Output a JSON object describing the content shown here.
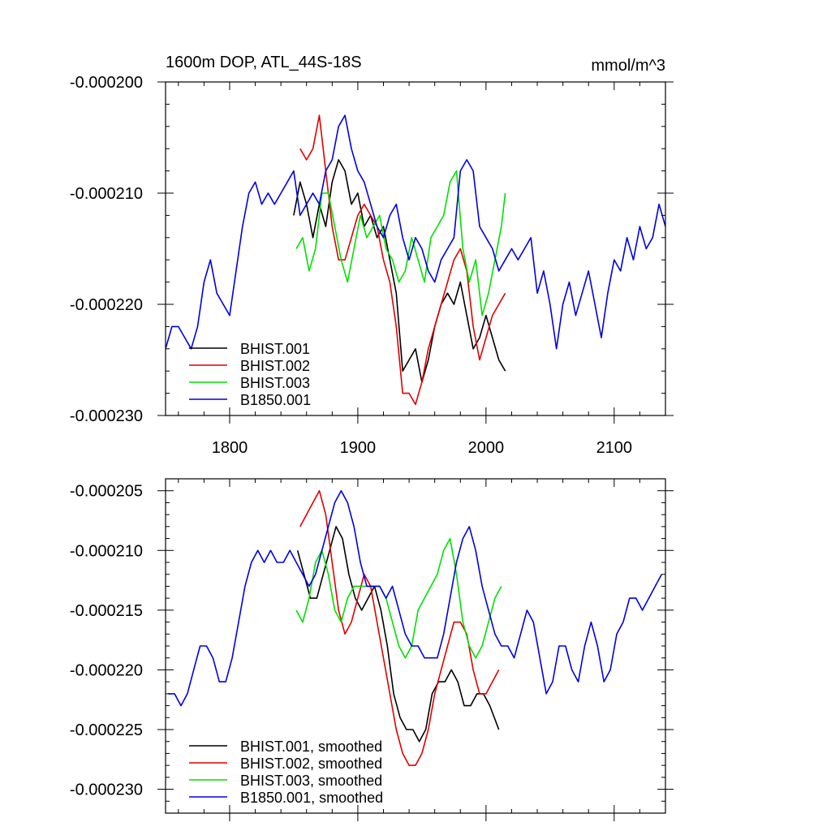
{
  "figure": {
    "title_left": "1600m DOP, ATL_44S-18S",
    "title_right": "mmol/m^3"
  },
  "colors": {
    "BHIST.001": "#000000",
    "BHIST.002": "#e00000",
    "BHIST.003": "#00e000",
    "B1850.001": "#0000e0"
  },
  "chart_data": [
    {
      "type": "line",
      "title": "1600m DOP, ATL_44S-18S",
      "units": "mmol/m^3",
      "xlabel": "",
      "ylabel": "",
      "xlim": [
        1750,
        2140
      ],
      "ylim": [
        -0.00023,
        -0.0002
      ],
      "xticks": [
        1800,
        1900,
        2000,
        2100
      ],
      "xtick_labels": [
        "1800",
        "1900",
        "2000",
        "2100"
      ],
      "yticks": [
        -0.0002,
        -0.00021,
        -0.00022,
        -0.00023
      ],
      "ytick_labels": [
        "-0.000200",
        "-0.000210",
        "-0.000220",
        "-0.000230"
      ],
      "grid": false,
      "legend_position": "bottom-left",
      "series": [
        {
          "name": "BHIST.001",
          "color": "#000000",
          "x": [
            1850,
            1855,
            1860,
            1865,
            1870,
            1875,
            1880,
            1885,
            1890,
            1895,
            1900,
            1905,
            1910,
            1915,
            1920,
            1925,
            1930,
            1935,
            1940,
            1945,
            1950,
            1955,
            1960,
            1965,
            1970,
            1975,
            1980,
            1985,
            1990,
            1995,
            2000,
            2005,
            2010,
            2015
          ],
          "y": [
            -0.000212,
            -0.000209,
            -0.000211,
            -0.000214,
            -0.000211,
            -0.000213,
            -0.000209,
            -0.000207,
            -0.000208,
            -0.000211,
            -0.00021,
            -0.000213,
            -0.000212,
            -0.000214,
            -0.000213,
            -0.000216,
            -0.000219,
            -0.000226,
            -0.000225,
            -0.000224,
            -0.000227,
            -0.000225,
            -0.000222,
            -0.00022,
            -0.000219,
            -0.00022,
            -0.000218,
            -0.000221,
            -0.000224,
            -0.000223,
            -0.000221,
            -0.000223,
            -0.000225,
            -0.000226
          ]
        },
        {
          "name": "BHIST.002",
          "color": "#e00000",
          "x": [
            1855,
            1860,
            1865,
            1870,
            1875,
            1880,
            1885,
            1890,
            1895,
            1900,
            1905,
            1910,
            1915,
            1920,
            1925,
            1930,
            1935,
            1940,
            1945,
            1950,
            1955,
            1960,
            1965,
            1970,
            1975,
            1980,
            1985,
            1990,
            1995,
            2000,
            2005,
            2010,
            2015
          ],
          "y": [
            -0.000206,
            -0.000207,
            -0.000206,
            -0.000203,
            -0.000208,
            -0.000213,
            -0.000216,
            -0.000216,
            -0.000214,
            -0.000212,
            -0.000211,
            -0.000212,
            -0.000213,
            -0.000216,
            -0.000218,
            -0.000222,
            -0.000228,
            -0.000228,
            -0.000229,
            -0.000227,
            -0.000224,
            -0.000222,
            -0.00022,
            -0.000218,
            -0.000216,
            -0.000215,
            -0.000217,
            -0.000222,
            -0.000225,
            -0.000223,
            -0.000221,
            -0.00022,
            -0.000219
          ]
        },
        {
          "name": "BHIST.003",
          "color": "#00e000",
          "x": [
            1852,
            1857,
            1862,
            1867,
            1872,
            1877,
            1882,
            1887,
            1892,
            1897,
            1902,
            1907,
            1912,
            1917,
            1922,
            1927,
            1932,
            1937,
            1942,
            1947,
            1952,
            1957,
            1962,
            1967,
            1972,
            1977,
            1982,
            1987,
            1992,
            1997,
            2002,
            2007,
            2012,
            2015
          ],
          "y": [
            -0.000215,
            -0.000214,
            -0.000217,
            -0.000215,
            -0.00021,
            -0.00021,
            -0.000213,
            -0.000216,
            -0.000218,
            -0.000215,
            -0.000212,
            -0.000214,
            -0.000213,
            -0.000212,
            -0.000215,
            -0.000216,
            -0.000218,
            -0.000217,
            -0.000214,
            -0.000216,
            -0.000218,
            -0.000214,
            -0.000213,
            -0.000212,
            -0.000209,
            -0.000208,
            -0.000215,
            -0.000218,
            -0.000216,
            -0.000221,
            -0.000219,
            -0.000216,
            -0.000213,
            -0.00021
          ]
        },
        {
          "name": "B1850.001",
          "color": "#0000e0",
          "x": [
            1750,
            1755,
            1760,
            1765,
            1770,
            1775,
            1780,
            1785,
            1790,
            1795,
            1800,
            1805,
            1810,
            1815,
            1820,
            1825,
            1830,
            1835,
            1840,
            1845,
            1850,
            1855,
            1860,
            1865,
            1870,
            1875,
            1880,
            1885,
            1890,
            1895,
            1900,
            1905,
            1910,
            1915,
            1920,
            1925,
            1930,
            1935,
            1940,
            1945,
            1950,
            1955,
            1960,
            1965,
            1970,
            1975,
            1980,
            1985,
            1990,
            1995,
            2000,
            2005,
            2010,
            2015,
            2020,
            2025,
            2030,
            2035,
            2040,
            2045,
            2050,
            2055,
            2060,
            2065,
            2070,
            2075,
            2080,
            2085,
            2090,
            2095,
            2100,
            2105,
            2110,
            2115,
            2120,
            2125,
            2130,
            2135,
            2140
          ],
          "y": [
            -0.000224,
            -0.000222,
            -0.000222,
            -0.000223,
            -0.000224,
            -0.000222,
            -0.000218,
            -0.000216,
            -0.000219,
            -0.00022,
            -0.000221,
            -0.000217,
            -0.000213,
            -0.00021,
            -0.000209,
            -0.000211,
            -0.00021,
            -0.000211,
            -0.00021,
            -0.000209,
            -0.000208,
            -0.000212,
            -0.000211,
            -0.00021,
            -0.000211,
            -0.000208,
            -0.000207,
            -0.000204,
            -0.000203,
            -0.000206,
            -0.000208,
            -0.000209,
            -0.000211,
            -0.000213,
            -0.000214,
            -0.000212,
            -0.000211,
            -0.000214,
            -0.000216,
            -0.000214,
            -0.000215,
            -0.000217,
            -0.000218,
            -0.000216,
            -0.000215,
            -0.000214,
            -0.000208,
            -0.000207,
            -0.000208,
            -0.000213,
            -0.000214,
            -0.000215,
            -0.000217,
            -0.000216,
            -0.000215,
            -0.000216,
            -0.000215,
            -0.000214,
            -0.000219,
            -0.000217,
            -0.00022,
            -0.000224,
            -0.00022,
            -0.000218,
            -0.000221,
            -0.000219,
            -0.000217,
            -0.00022,
            -0.000223,
            -0.000219,
            -0.000216,
            -0.000217,
            -0.000214,
            -0.000216,
            -0.000213,
            -0.000215,
            -0.000214,
            -0.000211,
            -0.000213
          ]
        }
      ]
    },
    {
      "type": "line",
      "title": "",
      "xlabel": "",
      "ylabel": "",
      "xlim": [
        1750,
        2140
      ],
      "ylim": [
        -0.000232,
        -0.000204
      ],
      "xticks": [
        1800,
        1900,
        2000,
        2100
      ],
      "yticks": [
        -0.000205,
        -0.00021,
        -0.000215,
        -0.00022,
        -0.000225,
        -0.00023
      ],
      "ytick_labels": [
        "-0.000205",
        "-0.000210",
        "-0.000215",
        "-0.000220",
        "-0.000225",
        "-0.000230"
      ],
      "grid": false,
      "legend_position": "bottom-left",
      "series": [
        {
          "name": "BHIST.001, smoothed",
          "color": "#000000",
          "x": [
            1853,
            1858,
            1863,
            1868,
            1873,
            1878,
            1883,
            1888,
            1893,
            1898,
            1903,
            1908,
            1913,
            1918,
            1923,
            1928,
            1933,
            1938,
            1943,
            1948,
            1953,
            1958,
            1963,
            1968,
            1973,
            1978,
            1983,
            1988,
            1993,
            1998,
            2003,
            2010
          ],
          "y": [
            -0.00021,
            -0.000212,
            -0.000214,
            -0.000214,
            -0.000212,
            -0.00021,
            -0.000208,
            -0.000209,
            -0.000212,
            -0.000214,
            -0.000215,
            -0.000214,
            -0.000213,
            -0.000215,
            -0.000218,
            -0.000222,
            -0.000224,
            -0.000225,
            -0.000225,
            -0.000226,
            -0.000225,
            -0.000222,
            -0.000221,
            -0.000221,
            -0.00022,
            -0.000221,
            -0.000223,
            -0.000223,
            -0.000222,
            -0.000222,
            -0.000223,
            -0.000225
          ]
        },
        {
          "name": "BHIST.002, smoothed",
          "color": "#e00000",
          "x": [
            1855,
            1860,
            1865,
            1870,
            1875,
            1880,
            1885,
            1890,
            1895,
            1900,
            1905,
            1910,
            1915,
            1920,
            1925,
            1930,
            1935,
            1940,
            1945,
            1950,
            1955,
            1960,
            1965,
            1970,
            1975,
            1980,
            1985,
            1990,
            1995,
            2000,
            2005,
            2010
          ],
          "y": [
            -0.000208,
            -0.000207,
            -0.000206,
            -0.000205,
            -0.000207,
            -0.000211,
            -0.000215,
            -0.000217,
            -0.000216,
            -0.000214,
            -0.000212,
            -0.000213,
            -0.000216,
            -0.000219,
            -0.000222,
            -0.000225,
            -0.000227,
            -0.000228,
            -0.000228,
            -0.000227,
            -0.000225,
            -0.000222,
            -0.00022,
            -0.000218,
            -0.000216,
            -0.000216,
            -0.000217,
            -0.00022,
            -0.000222,
            -0.000222,
            -0.000221,
            -0.00022
          ]
        },
        {
          "name": "BHIST.003, smoothed",
          "color": "#00e000",
          "x": [
            1852,
            1857,
            1862,
            1867,
            1872,
            1877,
            1882,
            1887,
            1892,
            1897,
            1902,
            1907,
            1912,
            1917,
            1922,
            1927,
            1932,
            1937,
            1942,
            1947,
            1952,
            1957,
            1962,
            1967,
            1972,
            1977,
            1982,
            1987,
            1992,
            1997,
            2002,
            2007,
            2012
          ],
          "y": [
            -0.000215,
            -0.000216,
            -0.000214,
            -0.000211,
            -0.00021,
            -0.000212,
            -0.000215,
            -0.000216,
            -0.000214,
            -0.000213,
            -0.000213,
            -0.000213,
            -0.000213,
            -0.000213,
            -0.000214,
            -0.000216,
            -0.000218,
            -0.000219,
            -0.000218,
            -0.000215,
            -0.000214,
            -0.000213,
            -0.000212,
            -0.00021,
            -0.000209,
            -0.000212,
            -0.000216,
            -0.000218,
            -0.000219,
            -0.000218,
            -0.000216,
            -0.000214,
            -0.000213
          ]
        },
        {
          "name": "B1850.001, smoothed",
          "color": "#0000e0",
          "x": [
            1752,
            1757,
            1762,
            1767,
            1772,
            1777,
            1782,
            1787,
            1792,
            1797,
            1802,
            1807,
            1812,
            1817,
            1822,
            1827,
            1832,
            1837,
            1842,
            1847,
            1852,
            1857,
            1862,
            1867,
            1872,
            1877,
            1882,
            1887,
            1892,
            1897,
            1902,
            1907,
            1912,
            1917,
            1922,
            1927,
            1932,
            1937,
            1942,
            1947,
            1952,
            1957,
            1962,
            1967,
            1972,
            1977,
            1982,
            1987,
            1992,
            1997,
            2002,
            2007,
            2012,
            2017,
            2022,
            2027,
            2032,
            2037,
            2042,
            2047,
            2052,
            2057,
            2062,
            2067,
            2072,
            2077,
            2082,
            2087,
            2092,
            2097,
            2102,
            2107,
            2112,
            2117,
            2122,
            2127,
            2132,
            2137
          ],
          "y": [
            -0.000222,
            -0.000222,
            -0.000223,
            -0.000222,
            -0.00022,
            -0.000218,
            -0.000218,
            -0.000219,
            -0.000221,
            -0.000221,
            -0.000219,
            -0.000216,
            -0.000213,
            -0.000211,
            -0.00021,
            -0.000211,
            -0.00021,
            -0.000211,
            -0.000211,
            -0.00021,
            -0.000211,
            -0.000212,
            -0.000213,
            -0.000212,
            -0.00021,
            -0.000208,
            -0.000206,
            -0.000205,
            -0.000206,
            -0.000208,
            -0.000211,
            -0.000213,
            -0.000213,
            -0.000213,
            -0.000214,
            -0.000213,
            -0.000215,
            -0.000217,
            -0.000218,
            -0.000218,
            -0.000219,
            -0.000219,
            -0.000219,
            -0.000217,
            -0.000214,
            -0.000211,
            -0.000209,
            -0.000208,
            -0.00021,
            -0.000213,
            -0.000215,
            -0.000217,
            -0.000218,
            -0.000218,
            -0.000219,
            -0.000217,
            -0.000215,
            -0.000216,
            -0.000219,
            -0.000222,
            -0.000221,
            -0.000218,
            -0.000218,
            -0.00022,
            -0.000221,
            -0.000218,
            -0.000216,
            -0.000218,
            -0.000221,
            -0.00022,
            -0.000217,
            -0.000216,
            -0.000214,
            -0.000214,
            -0.000215,
            -0.000214,
            -0.000213,
            -0.000212
          ]
        }
      ]
    }
  ]
}
